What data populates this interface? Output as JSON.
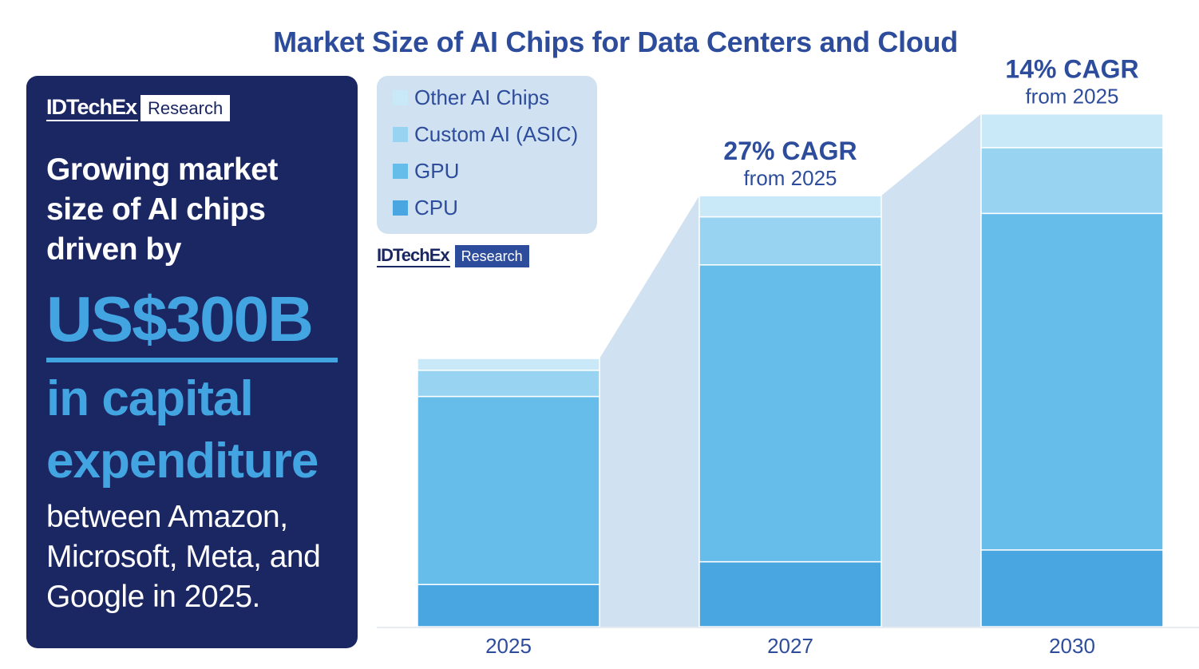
{
  "title": "Market Size of AI Chips for Data Centers and Cloud",
  "brand": {
    "name": "IDTechEx",
    "tag": "Research"
  },
  "panel": {
    "heading": "Growing market size of AI chips driven by",
    "amount": "US$300B",
    "accent": "in capital expenditure",
    "body": "between Amazon, Microsoft, Meta, and Google in 2025."
  },
  "colors": {
    "panel_bg": "#1b2763",
    "accent": "#43a4e2",
    "title": "#2d4d9c",
    "other": "#c9e8f8",
    "asic": "#98d4f1",
    "gpu": "#67bde9",
    "cpu": "#4aa6e0",
    "connector": "#d0e1f1",
    "axis_text": "#2d4d9c"
  },
  "chart_data": {
    "type": "bar",
    "stacked": true,
    "title": "Market Size of AI Chips for Data Centers and Cloud",
    "categories": [
      "2025",
      "2027",
      "2030"
    ],
    "series": [
      {
        "name": "CPU",
        "values": [
          50,
          77,
          91
        ]
      },
      {
        "name": "GPU",
        "values": [
          223,
          352,
          399
        ]
      },
      {
        "name": "Custom AI (ASIC)",
        "values": [
          31,
          57,
          78
        ]
      },
      {
        "name": "Other AI Chips",
        "values": [
          14,
          25,
          40
        ]
      }
    ],
    "legend_order": [
      "Other AI Chips",
      "Custom AI (ASIC)",
      "GPU",
      "CPU"
    ],
    "ylim": [
      0,
      620
    ],
    "xlabel": "",
    "ylabel": "",
    "annotations": [
      {
        "category": "2027",
        "main": "27% CAGR",
        "sub": "from 2025"
      },
      {
        "category": "2030",
        "main": "14% CAGR",
        "sub": "from 2025"
      }
    ]
  }
}
